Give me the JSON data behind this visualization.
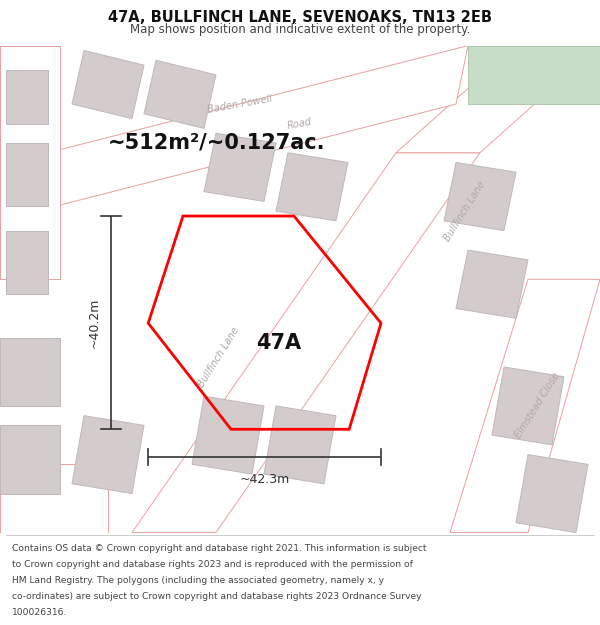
{
  "title": "47A, BULLFINCH LANE, SEVENOAKS, TN13 2EB",
  "subtitle": "Map shows position and indicative extent of the property.",
  "footer_lines": [
    "Contains OS data © Crown copyright and database right 2021. This information is subject",
    "to Crown copyright and database rights 2023 and is reproduced with the permission of",
    "HM Land Registry. The polygons (including the associated geometry, namely x, y",
    "co-ordinates) are subject to Crown copyright and database rights 2023 Ordnance Survey",
    "100026316."
  ],
  "area_label": "~512m²/~0.127ac.",
  "label_47a": "47A",
  "dim_height": "~40.2m",
  "dim_width": "~42.3m",
  "map_bg": "#f2eeee",
  "road_fill": "#ffffff",
  "road_edge": "#e8a0a0",
  "building_fill": "#d4cccc",
  "building_edge": "#c0b8b8",
  "green_fill": "#c8ddc8",
  "green_edge": "#b0c8b0",
  "highlight_color": "#ff0000",
  "highlight_lw": 2.0,
  "road_label_color": "#b0a8a8",
  "dim_color": "#333333",
  "text_color": "#111111",
  "title_color": "#111111",
  "footer_color": "#444444"
}
